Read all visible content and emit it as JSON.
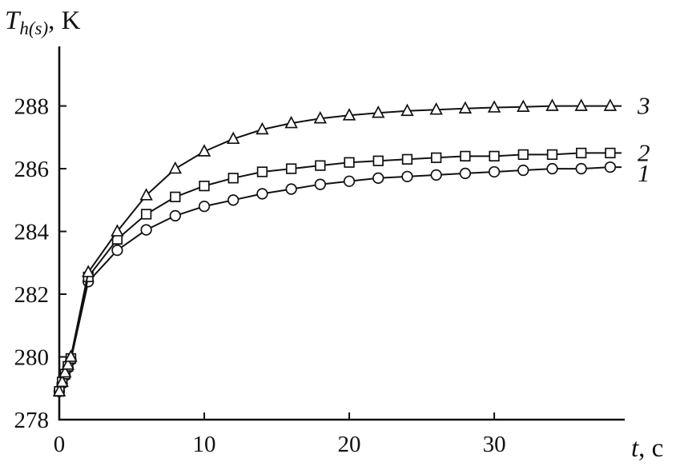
{
  "figure": {
    "background": "#ffffff",
    "ink_color": "#111111"
  },
  "chart_data": {
    "type": "line",
    "title": "",
    "ylabel": {
      "symbol": "T",
      "subscript": "h(s)",
      "suffix": ", K"
    },
    "xlabel": {
      "symbol": "t",
      "suffix": ", с"
    },
    "xlim": [
      0,
      39
    ],
    "ylim": [
      278,
      289.9
    ],
    "xticks": [
      0,
      10,
      20,
      30
    ],
    "yticks": [
      278,
      280,
      282,
      284,
      286,
      288
    ],
    "grid": false,
    "legend_position": "curve-end-labels-right",
    "color": "#111111",
    "x": [
      0,
      0.2,
      0.4,
      0.6,
      0.8,
      2,
      4,
      6,
      8,
      10,
      12,
      14,
      16,
      18,
      20,
      22,
      24,
      26,
      28,
      30,
      32,
      34,
      36,
      38
    ],
    "series": [
      {
        "name": "1",
        "marker": "circle",
        "label_dy": 8,
        "values": [
          278.9,
          279.15,
          279.4,
          279.65,
          279.9,
          282.4,
          283.4,
          284.05,
          284.5,
          284.8,
          285.0,
          285.2,
          285.35,
          285.5,
          285.6,
          285.7,
          285.75,
          285.8,
          285.85,
          285.9,
          285.95,
          286.0,
          286.0,
          286.05
        ]
      },
      {
        "name": "2",
        "marker": "square",
        "label_dy": 0,
        "values": [
          278.9,
          279.2,
          279.45,
          279.7,
          279.95,
          282.55,
          283.75,
          284.55,
          285.1,
          285.45,
          285.7,
          285.9,
          286.0,
          286.1,
          286.2,
          286.25,
          286.3,
          286.35,
          286.4,
          286.4,
          286.45,
          286.45,
          286.5,
          286.5
        ]
      },
      {
        "name": "3",
        "marker": "triangle",
        "label_dy": 0,
        "values": [
          278.9,
          279.2,
          279.5,
          279.75,
          280.0,
          282.7,
          284.0,
          285.15,
          286.0,
          286.55,
          286.95,
          287.25,
          287.45,
          287.6,
          287.7,
          287.78,
          287.84,
          287.88,
          287.92,
          287.95,
          287.97,
          288.0,
          288.0,
          288.0
        ]
      }
    ]
  }
}
